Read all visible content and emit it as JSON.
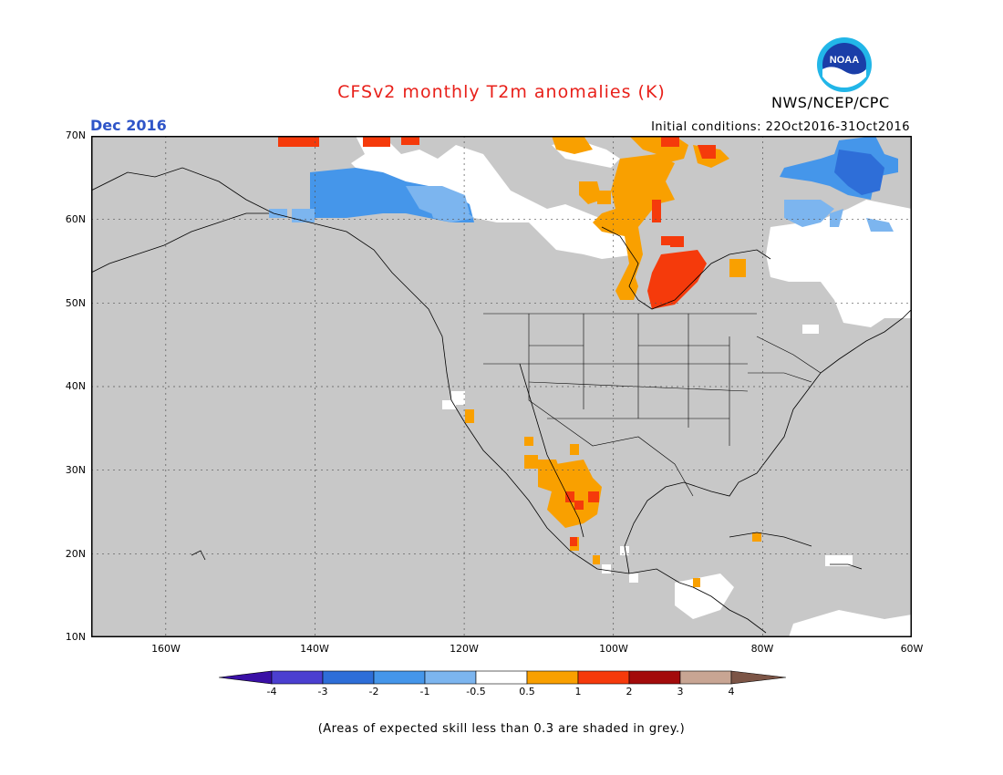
{
  "header": {
    "title": "CFSv2 monthly T2m anomalies (K)",
    "period": "Dec 2016",
    "initial_conditions": "Initial conditions: 22Oct2016-31Oct2016",
    "organization": "NWS/NCEP/CPC",
    "logo_text": "NOAA"
  },
  "colors": {
    "title": "#e8201a",
    "period": "#2f55c8",
    "grey": "#c8c8c8",
    "border": "#000000"
  },
  "axes": {
    "lat_labels": [
      "70N",
      "60N",
      "50N",
      "40N",
      "30N",
      "20N",
      "10N"
    ],
    "lon_labels": [
      "160W",
      "140W",
      "120W",
      "100W",
      "80W",
      "60W"
    ],
    "lat_range": [
      10,
      70
    ],
    "lon_range": [
      -170,
      -60
    ]
  },
  "legend": {
    "labels": [
      "-4",
      "-3",
      "-2",
      "-1",
      "-0.5",
      "0.5",
      "1",
      "2",
      "3",
      "4"
    ],
    "colors": [
      "#3a10a6",
      "#4b3fd0",
      "#2e6ed8",
      "#4596ea",
      "#7cb5ef",
      "#ffffff",
      "#f9a000",
      "#f53a0b",
      "#a30b0b",
      "#c8a593",
      "#7c5546"
    ]
  },
  "footnote": "(Areas of expected skill less than 0.3 are shaded in grey.)"
}
